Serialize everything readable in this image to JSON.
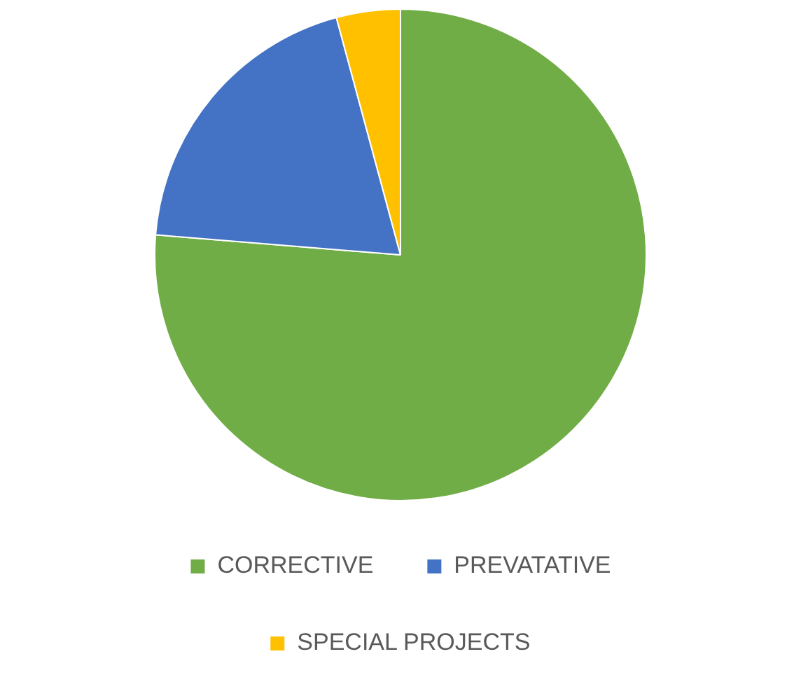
{
  "chart_data": {
    "type": "pie",
    "categories": [
      "CORRECTIVE",
      "PREVATATIVE",
      "SPECIAL PROJECTS"
    ],
    "values": [
      76.3,
      19.5,
      4.2
    ],
    "colors": [
      "#70ad47",
      "#4472c4",
      "#ffc000"
    ],
    "legend": "bottom"
  }
}
